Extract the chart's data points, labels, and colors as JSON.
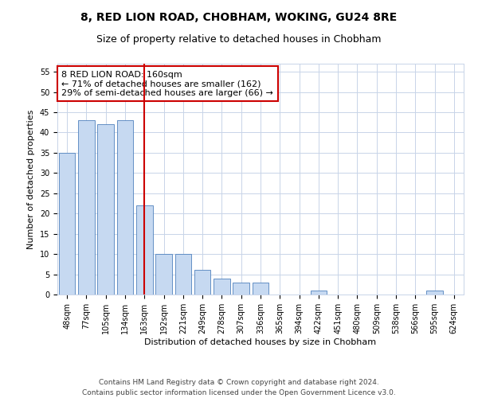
{
  "title": "8, RED LION ROAD, CHOBHAM, WOKING, GU24 8RE",
  "subtitle": "Size of property relative to detached houses in Chobham",
  "xlabel": "Distribution of detached houses by size in Chobham",
  "ylabel": "Number of detached properties",
  "categories": [
    "48sqm",
    "77sqm",
    "105sqm",
    "134sqm",
    "163sqm",
    "192sqm",
    "221sqm",
    "249sqm",
    "278sqm",
    "307sqm",
    "336sqm",
    "365sqm",
    "394sqm",
    "422sqm",
    "451sqm",
    "480sqm",
    "509sqm",
    "538sqm",
    "566sqm",
    "595sqm",
    "624sqm"
  ],
  "values": [
    35,
    43,
    42,
    43,
    22,
    10,
    10,
    6,
    4,
    3,
    3,
    0,
    0,
    1,
    0,
    0,
    0,
    0,
    0,
    1,
    0
  ],
  "bar_color": "#c6d9f1",
  "bar_edge_color": "#4f81bd",
  "vline_x": 4,
  "vline_color": "#cc0000",
  "annotation_text": "8 RED LION ROAD: 160sqm\n← 71% of detached houses are smaller (162)\n29% of semi-detached houses are larger (66) →",
  "annotation_box_color": "#ffffff",
  "annotation_box_edge": "#cc0000",
  "ylim": [
    0,
    57
  ],
  "yticks": [
    0,
    5,
    10,
    15,
    20,
    25,
    30,
    35,
    40,
    45,
    50,
    55
  ],
  "footer": "Contains HM Land Registry data © Crown copyright and database right 2024.\nContains public sector information licensed under the Open Government Licence v3.0.",
  "bg_color": "#ffffff",
  "grid_color": "#c8d4e8",
  "title_fontsize": 10,
  "subtitle_fontsize": 9,
  "axis_label_fontsize": 8,
  "tick_fontsize": 7,
  "annotation_fontsize": 8,
  "footer_fontsize": 6.5
}
